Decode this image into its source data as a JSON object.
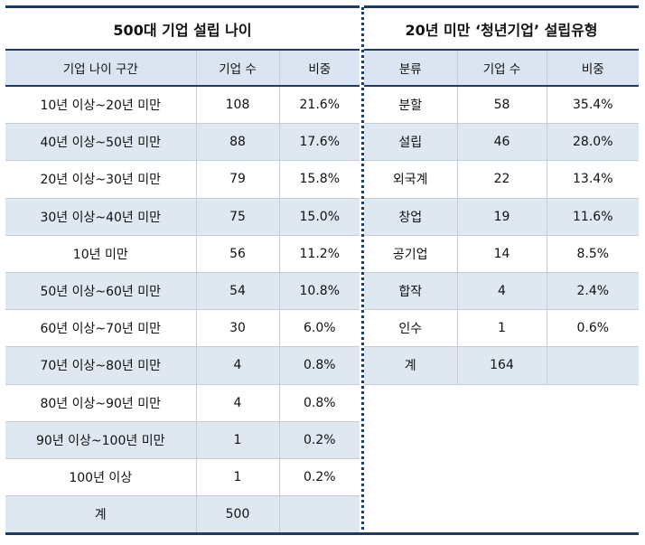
{
  "left": {
    "title": "500대 기업 설립 나이",
    "headers": [
      "기업 나이 구간",
      "기업 수",
      "비중"
    ],
    "rows": [
      [
        "10년 이상~20년 미만",
        "108",
        "21.6%"
      ],
      [
        "40년 이상~50년 미만",
        "88",
        "17.6%"
      ],
      [
        "20년 이상~30년 미만",
        "79",
        "15.8%"
      ],
      [
        "30년 이상~40년 미만",
        "75",
        "15.0%"
      ],
      [
        "10년 미만",
        "56",
        "11.2%"
      ],
      [
        "50년 이상~60년 미만",
        "54",
        "10.8%"
      ],
      [
        "60년 이상~70년 미만",
        "30",
        "6.0%"
      ],
      [
        "70년 이상~80년 미만",
        "4",
        "0.8%"
      ],
      [
        "80년 이상~90년 미만",
        "4",
        "0.8%"
      ],
      [
        "90년 이상~100년 미만",
        "1",
        "0.2%"
      ],
      [
        "100년 이상",
        "1",
        "0.2%"
      ],
      [
        "계",
        "500",
        ""
      ]
    ]
  },
  "right": {
    "title": "20년 미만 ‘청년기업’ 설립유형",
    "headers": [
      "분류",
      "기업 수",
      "비중"
    ],
    "rows": [
      [
        "분할",
        "58",
        "35.4%"
      ],
      [
        "설립",
        "46",
        "28.0%"
      ],
      [
        "외국계",
        "22",
        "13.4%"
      ],
      [
        "창업",
        "19",
        "11.6%"
      ],
      [
        "공기업",
        "14",
        "8.5%"
      ],
      [
        "합작",
        "4",
        "2.4%"
      ],
      [
        "인수",
        "1",
        "0.6%"
      ],
      [
        "계",
        "164",
        ""
      ]
    ]
  }
}
